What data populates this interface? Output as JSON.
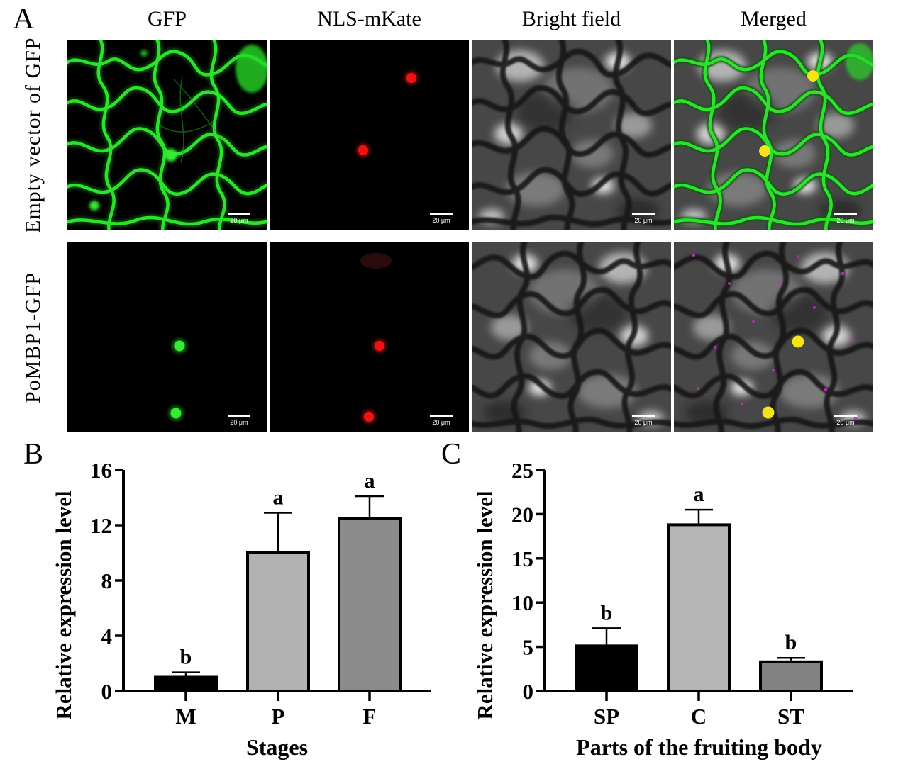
{
  "panels": {
    "a": {
      "label": "A",
      "column_headers": [
        "GFP",
        "NLS-mKate",
        "Bright field",
        "Merged"
      ],
      "row_labels": [
        "Empty vector of GFP",
        "PoMBP1-GFP"
      ],
      "scale_bar_label": "20 μm"
    },
    "b": {
      "label": "B"
    },
    "c": {
      "label": "C"
    }
  },
  "chart_data": [
    {
      "panel": "B",
      "type": "bar",
      "categories": [
        "M",
        "P",
        "F"
      ],
      "values": [
        1.0,
        10.0,
        12.5
      ],
      "errors": [
        0.35,
        2.9,
        1.6
      ],
      "sig_letters": [
        "b",
        "a",
        "a"
      ],
      "ylabel": "Relative expression level",
      "xlabel": "Stages",
      "ylim": [
        0,
        16
      ],
      "yticks": [
        0,
        4,
        8,
        12,
        16
      ],
      "bar_colors": [
        "#000000",
        "#b2b2b2",
        "#8c8c8c"
      ],
      "grid": false,
      "legend": false
    },
    {
      "panel": "C",
      "type": "bar",
      "categories": [
        "SP",
        "C",
        "ST"
      ],
      "values": [
        5.1,
        18.8,
        3.3
      ],
      "errors": [
        2.0,
        1.7,
        0.45
      ],
      "sig_letters": [
        "b",
        "a",
        "b"
      ],
      "ylabel": "Relative expression level",
      "xlabel": "Parts of the fruiting body",
      "ylim": [
        0,
        25
      ],
      "yticks": [
        0,
        5,
        10,
        15,
        20,
        25
      ],
      "bar_colors": [
        "#000000",
        "#b5b5b5",
        "#828282"
      ],
      "grid": false,
      "legend": false
    }
  ]
}
